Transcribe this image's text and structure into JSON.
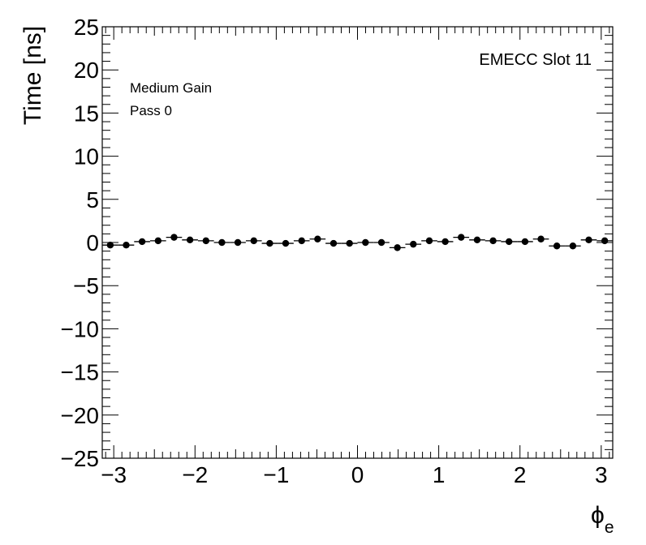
{
  "chart_data": {
    "type": "scatter",
    "title": "",
    "xlabel_symbol": "ϕ",
    "xlabel_subscript": "e",
    "ylabel": "Time [ns]",
    "xlim": [
      -3.1416,
      3.1416
    ],
    "ylim": [
      -25,
      25
    ],
    "x_ticks": [
      -3,
      -2,
      -1,
      0,
      1,
      2,
      3
    ],
    "x_tick_labels": [
      "−3",
      "−2",
      "−1",
      "0",
      "1",
      "2",
      "3"
    ],
    "y_ticks": [
      -25,
      -20,
      -15,
      -10,
      -5,
      0,
      5,
      10,
      15,
      20,
      25
    ],
    "y_tick_labels": [
      "−25",
      "−20",
      "−15",
      "−10",
      "−5",
      "0",
      "5",
      "10",
      "15",
      "20",
      "25"
    ],
    "grid": false,
    "annotations": {
      "top_right": "EMECC Slot 11",
      "line1": "Medium Gain",
      "line2": "Pass 0"
    },
    "series": [
      {
        "bin_width": 0.19635,
        "x": [
          -3.043,
          -2.847,
          -2.651,
          -2.454,
          -2.258,
          -2.062,
          -1.865,
          -1.669,
          -1.473,
          -1.276,
          -1.08,
          -0.884,
          -0.687,
          -0.491,
          -0.295,
          -0.098,
          0.098,
          0.295,
          0.491,
          0.687,
          0.884,
          1.08,
          1.276,
          1.473,
          1.669,
          1.865,
          2.062,
          2.258,
          2.454,
          2.651,
          2.847,
          3.043
        ],
        "y": [
          -0.3,
          -0.3,
          0.1,
          0.2,
          0.6,
          0.3,
          0.2,
          0.0,
          0.0,
          0.2,
          -0.1,
          -0.1,
          0.2,
          0.4,
          -0.1,
          -0.1,
          0.0,
          0.0,
          -0.6,
          -0.2,
          0.2,
          0.1,
          0.6,
          0.3,
          0.2,
          0.1,
          0.1,
          0.4,
          -0.4,
          -0.4,
          0.3,
          0.2
        ]
      }
    ]
  }
}
